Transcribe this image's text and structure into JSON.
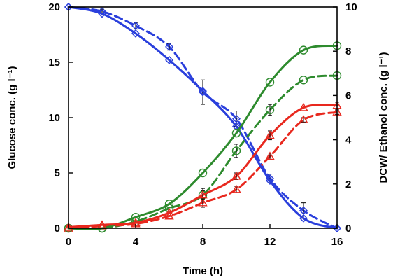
{
  "chart_data": {
    "type": "line",
    "xlabel": "Time (h)",
    "ylabel_left": "Glucose conc. (g l⁻¹)",
    "ylabel_right": "DCW/ Ethanol conc. (g l⁻¹)",
    "xlim": [
      0,
      16
    ],
    "ylim_left": [
      0,
      20
    ],
    "ylim_right": [
      0,
      10
    ],
    "x_ticks": [
      0,
      4,
      8,
      12,
      16
    ],
    "y_left_ticks": [
      0,
      5,
      10,
      15,
      20
    ],
    "y_right_ticks": [
      0,
      2,
      4,
      6,
      8,
      10
    ],
    "grid": false,
    "colors": {
      "blue": "#2a3fdc",
      "green": "#2e8b2e",
      "red": "#e8281e"
    },
    "series": [
      {
        "id": "glucose-solid",
        "axis": "left",
        "color": "#2a3fdc",
        "dashed": false,
        "marker": "diamond",
        "x": [
          0,
          2,
          4,
          6,
          8,
          10,
          12,
          14,
          16
        ],
        "y": [
          20,
          19.4,
          17.6,
          15.2,
          12.4,
          9.2,
          4.3,
          0.9,
          0
        ],
        "err": [
          0,
          0,
          0,
          0,
          0,
          0,
          0,
          0,
          0
        ]
      },
      {
        "id": "glucose-dashed",
        "axis": "left",
        "color": "#2a3fdc",
        "dashed": true,
        "marker": "diamond",
        "x": [
          0,
          2,
          4,
          6,
          8,
          10,
          12,
          14,
          16
        ],
        "y": [
          20,
          19.6,
          18.3,
          16.4,
          12.3,
          9.9,
          4.5,
          1.6,
          0
        ],
        "err": [
          0,
          0.2,
          0.3,
          0.3,
          1.1,
          0.7,
          0.4,
          0.7,
          0
        ]
      },
      {
        "id": "dcw-solid",
        "axis": "right",
        "color": "#2e8b2e",
        "dashed": false,
        "marker": "circle",
        "x": [
          0,
          2,
          4,
          6,
          8,
          10,
          12,
          14,
          16
        ],
        "y": [
          0,
          0,
          0.5,
          1.1,
          2.5,
          4.3,
          6.6,
          8.05,
          8.25
        ],
        "err": [
          0,
          0,
          0,
          0,
          0,
          0,
          0,
          0,
          0
        ]
      },
      {
        "id": "dcw-dashed",
        "axis": "right",
        "color": "#2e8b2e",
        "dashed": true,
        "marker": "circle",
        "x": [
          0,
          2,
          4,
          6,
          8,
          10,
          12,
          14,
          16
        ],
        "y": [
          0,
          0,
          0.3,
          0.9,
          1.5,
          3.5,
          5.35,
          6.7,
          6.9
        ],
        "err": [
          0,
          0,
          0,
          0,
          0.3,
          0.3,
          0.25,
          0,
          0
        ]
      },
      {
        "id": "ethanol-solid",
        "axis": "right",
        "color": "#e8281e",
        "dashed": false,
        "marker": "triangle",
        "x": [
          0,
          2,
          4,
          6,
          8,
          10,
          12,
          14,
          16
        ],
        "y": [
          0.05,
          0.15,
          0.25,
          0.7,
          1.5,
          2.35,
          4.2,
          5.45,
          5.55
        ],
        "err": [
          0,
          0,
          0,
          0,
          0.2,
          0.15,
          0.2,
          0,
          0.15
        ]
      },
      {
        "id": "ethanol-dashed",
        "axis": "right",
        "color": "#e8281e",
        "dashed": true,
        "marker": "triangle",
        "x": [
          0,
          2,
          4,
          6,
          8,
          10,
          12,
          14,
          16
        ],
        "y": [
          0,
          0.1,
          0.2,
          0.55,
          1.15,
          1.75,
          3.25,
          4.9,
          5.25
        ],
        "err": [
          0,
          0,
          0,
          0,
          0.2,
          0.15,
          0.15,
          0.1,
          0.1
        ]
      }
    ]
  }
}
